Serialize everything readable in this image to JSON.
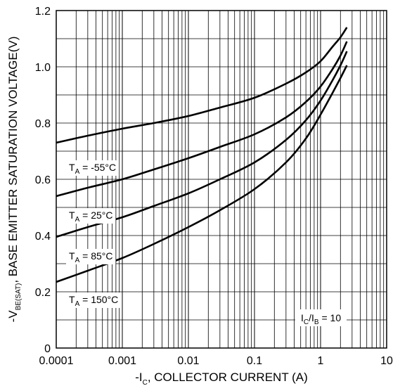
{
  "chart_data": {
    "type": "line",
    "title": "",
    "xlabel": {
      "pre": "-I",
      "sub": "C",
      "post": ", COLLECTOR CURRENT (A)"
    },
    "ylabel": {
      "pre": "-V",
      "sub": "BE(SAT)",
      "post": ", BASE EMITTER SATURATION VOLTAGE(V)"
    },
    "x_scale": "log",
    "xlim": [
      0.0001,
      10
    ],
    "ylim": [
      0,
      1.2
    ],
    "x_ticks": [
      0.0001,
      0.001,
      0.01,
      0.1,
      1,
      10
    ],
    "x_tick_labels": [
      "0.0001",
      "0.001",
      "0.01",
      "0.1",
      "1",
      "10"
    ],
    "y_ticks": [
      0,
      0.2,
      0.4,
      0.6,
      0.8,
      1.0,
      1.2
    ],
    "y_tick_labels": [
      "0",
      "0.2",
      "0.4",
      "0.6",
      "0.8",
      "1.0",
      "1.2"
    ],
    "y_minor_step": 0.1,
    "grid": true,
    "annotation": {
      "pre": "I",
      "sub1": "C",
      "mid": "/I",
      "sub2": "B",
      "post": " = 10"
    },
    "series": [
      {
        "label": {
          "pre": "T",
          "sub": "A",
          "post": " = -55°C"
        },
        "x": [
          0.0001,
          0.0003,
          0.001,
          0.003,
          0.01,
          0.03,
          0.1,
          0.3,
          0.6,
          1,
          1.5,
          2,
          2.5
        ],
        "y": [
          0.73,
          0.755,
          0.78,
          0.8,
          0.825,
          0.855,
          0.89,
          0.94,
          0.98,
          1.02,
          1.07,
          1.105,
          1.14
        ]
      },
      {
        "label": {
          "pre": "T",
          "sub": "A",
          "post": " = 25°C"
        },
        "x": [
          0.0001,
          0.0003,
          0.001,
          0.003,
          0.01,
          0.03,
          0.1,
          0.3,
          0.6,
          1,
          1.5,
          2,
          2.5
        ],
        "y": [
          0.54,
          0.57,
          0.6,
          0.635,
          0.675,
          0.715,
          0.76,
          0.82,
          0.875,
          0.93,
          0.99,
          1.04,
          1.09
        ]
      },
      {
        "label": {
          "pre": "T",
          "sub": "A",
          "post": " = 85°C"
        },
        "x": [
          0.0001,
          0.0003,
          0.001,
          0.003,
          0.01,
          0.03,
          0.1,
          0.3,
          0.6,
          1,
          1.5,
          2,
          2.5
        ],
        "y": [
          0.395,
          0.43,
          0.465,
          0.505,
          0.55,
          0.6,
          0.66,
          0.74,
          0.81,
          0.88,
          0.95,
          1.005,
          1.055
        ]
      },
      {
        "label": {
          "pre": "T",
          "sub": "A",
          "post": " = 150°C"
        },
        "x": [
          0.0001,
          0.0003,
          0.001,
          0.003,
          0.01,
          0.03,
          0.1,
          0.3,
          0.6,
          1,
          1.5,
          2,
          2.5
        ],
        "y": [
          0.235,
          0.275,
          0.32,
          0.37,
          0.43,
          0.49,
          0.565,
          0.66,
          0.745,
          0.83,
          0.905,
          0.96,
          1.005
        ]
      }
    ]
  }
}
